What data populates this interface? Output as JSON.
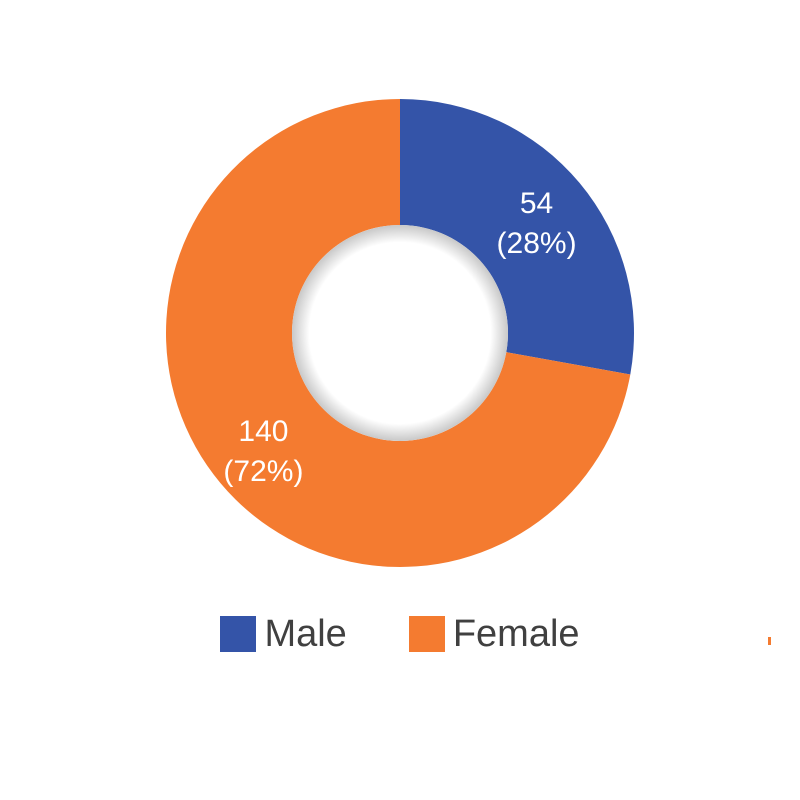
{
  "chart_data": {
    "type": "pie",
    "variant": "donut",
    "title": "",
    "categories": [
      "Male",
      "Female"
    ],
    "values": [
      54,
      140
    ],
    "percent_labels": [
      "28%",
      "72%"
    ],
    "labels": [
      "54 (28%)",
      "140 (72%)"
    ],
    "colors": [
      "#3454a8",
      "#f47b30"
    ],
    "legend_position": "bottom"
  },
  "legend": [
    {
      "label": "Male",
      "color": "#3454a8"
    },
    {
      "label": "Female",
      "color": "#f47b30"
    }
  ]
}
